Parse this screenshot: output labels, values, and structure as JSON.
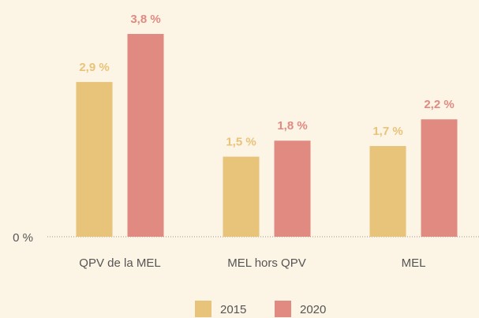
{
  "chart_data": {
    "type": "bar",
    "categories": [
      "QPV de la MEL",
      "MEL hors QPV",
      "MEL"
    ],
    "series": [
      {
        "name": "2015",
        "color": "#e8c37a",
        "values": [
          2.9,
          1.5,
          1.7
        ],
        "value_labels": [
          "2,9 %",
          "1,5 %",
          "1,7 %"
        ]
      },
      {
        "name": "2020",
        "color": "#e08a82",
        "values": [
          3.8,
          1.8,
          2.2
        ],
        "value_labels": [
          "3,8 %",
          "1,8 %",
          "2,2 %"
        ]
      }
    ],
    "ylim": [
      0,
      4
    ],
    "yticks": [
      {
        "value": 0,
        "label": "0 %"
      }
    ],
    "legend": "bottom"
  }
}
